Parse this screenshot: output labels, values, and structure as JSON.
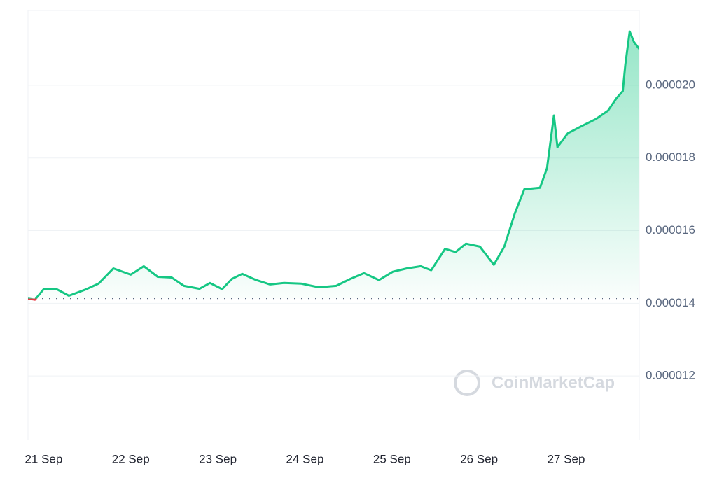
{
  "chart_data": {
    "type": "line",
    "watermark": "CoinMarketCap",
    "x": [
      20.82,
      20.9,
      21.0,
      21.14,
      21.29,
      21.47,
      21.63,
      21.8,
      22.0,
      22.15,
      22.31,
      22.47,
      22.61,
      22.79,
      22.91,
      23.05,
      23.16,
      23.28,
      23.44,
      23.6,
      23.76,
      23.96,
      24.16,
      24.36,
      24.52,
      24.68,
      24.85,
      25.01,
      25.17,
      25.33,
      25.45,
      25.61,
      25.73,
      25.85,
      26.01,
      26.17,
      26.29,
      26.41,
      26.52,
      26.7,
      26.78,
      26.86,
      26.9,
      27.02,
      27.18,
      27.34,
      27.48,
      27.58,
      27.65,
      27.68,
      27.73,
      27.78,
      27.84
    ],
    "series": [
      {
        "color": "#16c784",
        "down_color": "#ea3943",
        "values": [
          1.413e-05,
          1.41e-05,
          1.439e-05,
          1.44e-05,
          1.421e-05,
          1.437e-05,
          1.454e-05,
          1.496e-05,
          1.479e-05,
          1.502e-05,
          1.473e-05,
          1.471e-05,
          1.448e-05,
          1.44e-05,
          1.456e-05,
          1.439e-05,
          1.467e-05,
          1.481e-05,
          1.464e-05,
          1.452e-05,
          1.456e-05,
          1.454e-05,
          1.444e-05,
          1.448e-05,
          1.467e-05,
          1.483e-05,
          1.464e-05,
          1.487e-05,
          1.496e-05,
          1.502e-05,
          1.491e-05,
          1.55e-05,
          1.541e-05,
          1.564e-05,
          1.556e-05,
          1.506e-05,
          1.556e-05,
          1.647e-05,
          1.714e-05,
          1.718e-05,
          1.772e-05,
          1.917e-05,
          1.83e-05,
          1.868e-05,
          1.888e-05,
          1.907e-05,
          1.93e-05,
          1.965e-05,
          1.984e-05,
          2.057e-05,
          2.148e-05,
          2.119e-05,
          2.1e-05
        ]
      }
    ],
    "baseline": 1.413e-05,
    "xlim": [
      20.82,
      27.84
    ],
    "xticks": [
      {
        "value": 21,
        "label": "21 Sep"
      },
      {
        "value": 22,
        "label": "22 Sep"
      },
      {
        "value": 23,
        "label": "23 Sep"
      },
      {
        "value": 24,
        "label": "24 Sep"
      },
      {
        "value": 25,
        "label": "25 Sep"
      },
      {
        "value": 26,
        "label": "26 Sep"
      },
      {
        "value": 27,
        "label": "27 Sep"
      }
    ],
    "ylim": [
      1.025e-05,
      2.206e-05
    ],
    "yticks": [
      {
        "value": 1.2e-05,
        "label": "0.000012"
      },
      {
        "value": 1.4e-05,
        "label": "0.000014"
      },
      {
        "value": 1.6e-05,
        "label": "0.000016"
      },
      {
        "value": 1.8e-05,
        "label": "0.000018"
      },
      {
        "value": 2e-05,
        "label": "0.000020"
      }
    ],
    "grid": true
  }
}
